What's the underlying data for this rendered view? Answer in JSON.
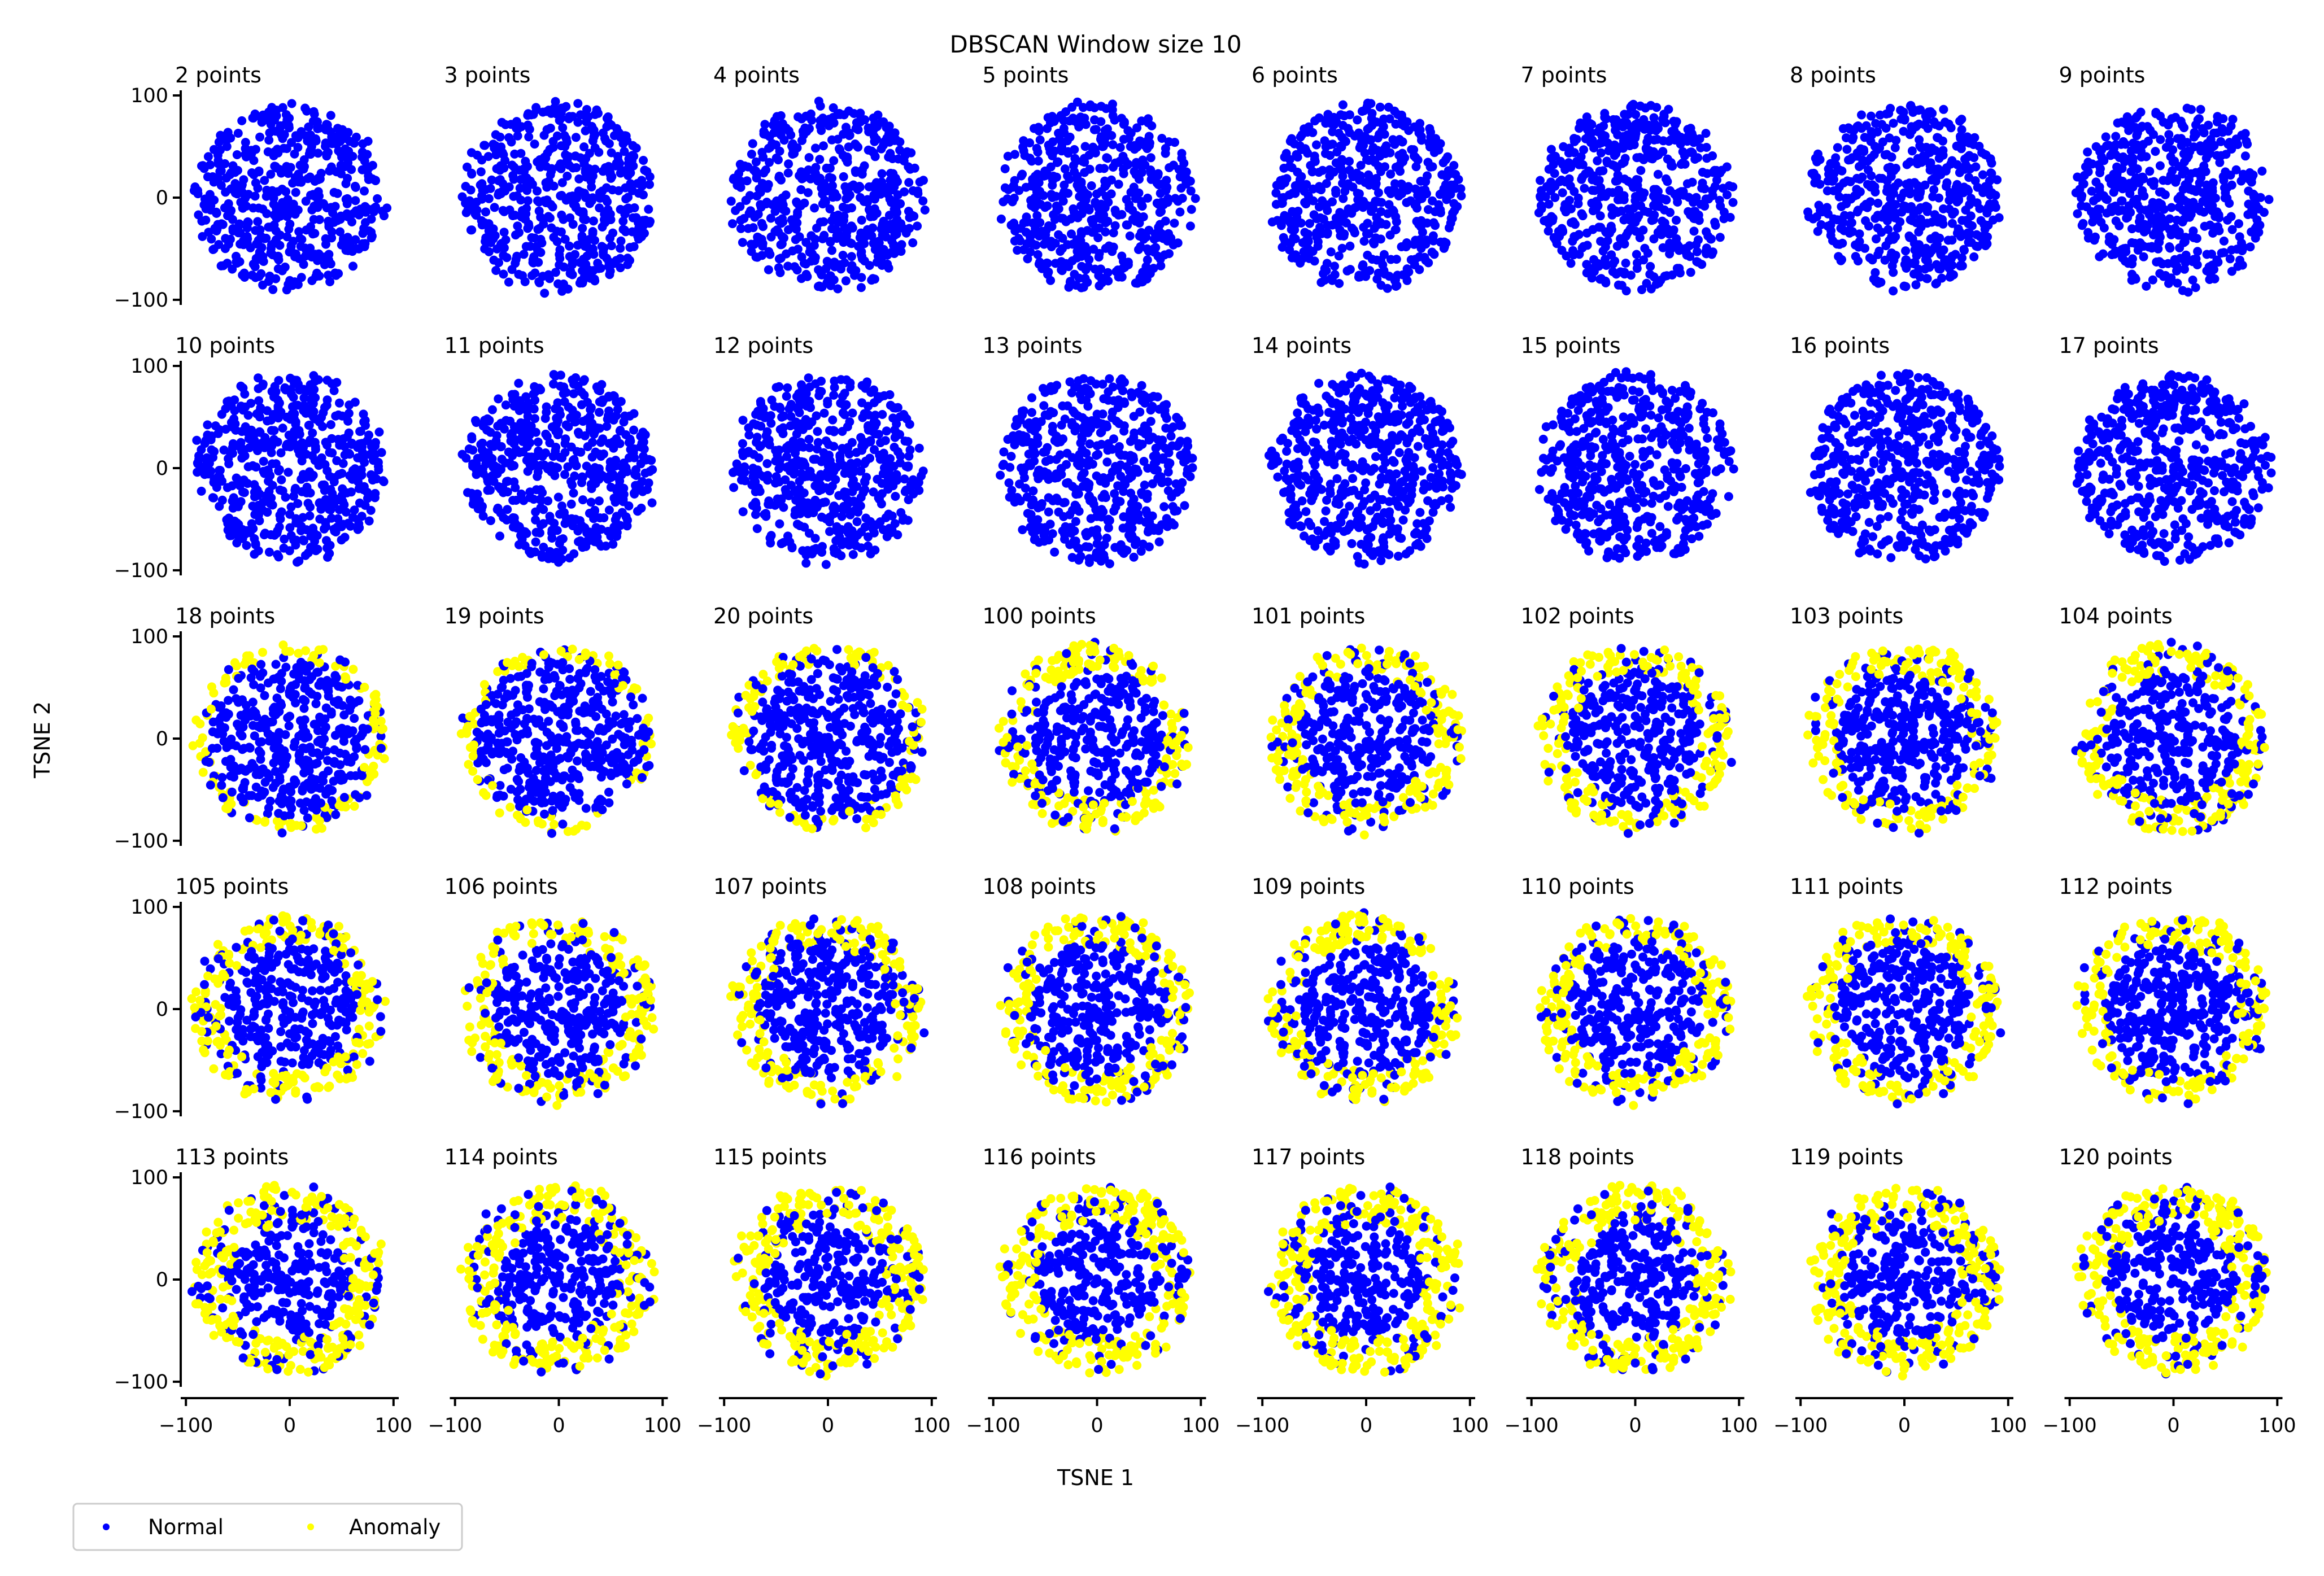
{
  "figure": {
    "title": "DBSCAN Window size 10",
    "xlabel": "TSNE 1",
    "ylabel": "TSNE 2"
  },
  "legend": {
    "placement": "bottom-left",
    "items": [
      {
        "label": "Normal",
        "color": "#0000ff"
      },
      {
        "label": "Anomaly",
        "color": "#ffff00"
      }
    ]
  },
  "chart_data": {
    "type": "scatter",
    "layout": "grid of small multiples, 5 rows x 8 columns, shared x and y axes",
    "title": "DBSCAN Window size 10",
    "xlabel": "TSNE 1",
    "ylabel": "TSNE 2",
    "xlim": [
      -105,
      105
    ],
    "ylim": [
      -105,
      105
    ],
    "xticks": [
      -100,
      0,
      100
    ],
    "yticks": [
      -100,
      0,
      100
    ],
    "xtick_labels": [
      "−100",
      "0",
      "100"
    ],
    "ytick_labels": [
      "−100",
      "0",
      "100"
    ],
    "grid": false,
    "series": [
      {
        "name": "Normal",
        "color": "#0000ff"
      },
      {
        "name": "Anomaly",
        "color": "#ffff00"
      }
    ],
    "panels": [
      {
        "title": "2 points",
        "normal_sector": "none"
      },
      {
        "title": "3 points",
        "normal_sector": "none"
      },
      {
        "title": "4 points",
        "normal_sector": "none"
      },
      {
        "title": "5 points",
        "normal_sector": "none"
      },
      {
        "title": "6 points",
        "normal_sector": "none"
      },
      {
        "title": "7 points",
        "normal_sector": "none"
      },
      {
        "title": "8 points",
        "normal_sector": "none"
      },
      {
        "title": "9 points",
        "normal_sector": "none"
      },
      {
        "title": "10 points",
        "normal_sector": "none"
      },
      {
        "title": "11 points",
        "normal_sector": "none"
      },
      {
        "title": "12 points",
        "normal_sector": "none"
      },
      {
        "title": "13 points",
        "normal_sector": "none"
      },
      {
        "title": "14 points",
        "normal_sector": "none"
      },
      {
        "title": "15 points",
        "normal_sector": "none"
      },
      {
        "title": "16 points",
        "normal_sector": "none"
      },
      {
        "title": "17 points",
        "normal_sector": "none"
      },
      {
        "title": "18 points",
        "normal_sector": "low"
      },
      {
        "title": "19 points",
        "normal_sector": "low"
      },
      {
        "title": "20 points",
        "normal_sector": "low"
      },
      {
        "title": "100 points",
        "normal_sector": "mid"
      },
      {
        "title": "101 points",
        "normal_sector": "mid"
      },
      {
        "title": "102 points",
        "normal_sector": "mid"
      },
      {
        "title": "103 points",
        "normal_sector": "mid"
      },
      {
        "title": "104 points",
        "normal_sector": "mid"
      },
      {
        "title": "105 points",
        "normal_sector": "mid"
      },
      {
        "title": "106 points",
        "normal_sector": "mid"
      },
      {
        "title": "107 points",
        "normal_sector": "mid"
      },
      {
        "title": "108 points",
        "normal_sector": "mid"
      },
      {
        "title": "109 points",
        "normal_sector": "mid"
      },
      {
        "title": "110 points",
        "normal_sector": "mid"
      },
      {
        "title": "111 points",
        "normal_sector": "mid"
      },
      {
        "title": "112 points",
        "normal_sector": "mid"
      },
      {
        "title": "113 points",
        "normal_sector": "high"
      },
      {
        "title": "114 points",
        "normal_sector": "high"
      },
      {
        "title": "115 points",
        "normal_sector": "high"
      },
      {
        "title": "116 points",
        "normal_sector": "high"
      },
      {
        "title": "117 points",
        "normal_sector": "high"
      },
      {
        "title": "118 points",
        "normal_sector": "high"
      },
      {
        "title": "119 points",
        "normal_sector": "high"
      },
      {
        "title": "120 points",
        "normal_sector": "high"
      }
    ]
  }
}
